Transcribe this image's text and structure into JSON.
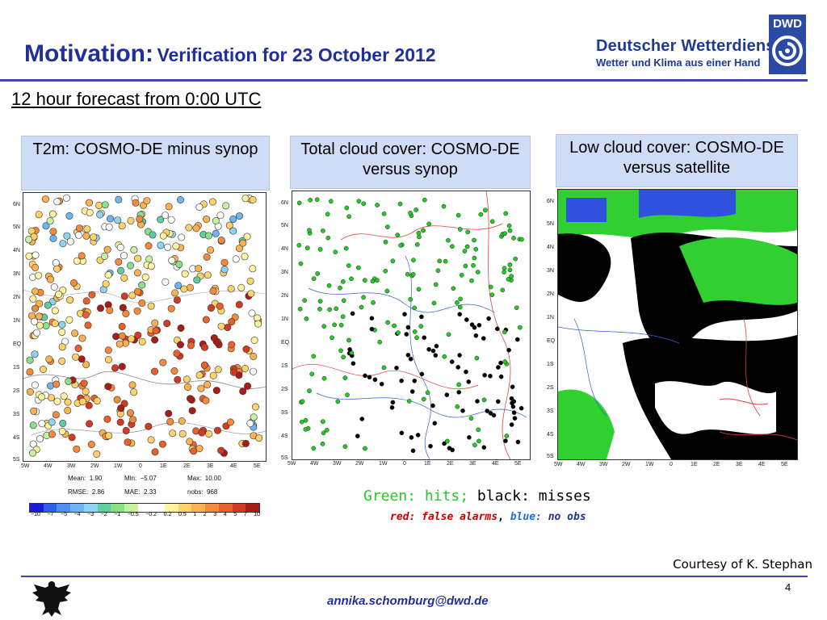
{
  "header": {
    "title_main": "Motivation:",
    "title_sub": "Verification for 23 October 2012",
    "logo_name": "Deutscher Wetterdienst",
    "logo_tagline": "Wetter und Klima aus einer Hand",
    "logo_abbr": "DWD"
  },
  "subtitle": "12 hour forecast from 0:00 UTC",
  "panels": [
    {
      "title": "T2m: COSMO-DE minus synop"
    },
    {
      "title": "Total cloud cover: COSMO-DE versus synop"
    },
    {
      "title": "Low cloud cover: COSMO-DE versus satellite"
    }
  ],
  "axes": {
    "y_ticks": [
      "6N",
      "5N",
      "4N",
      "3N",
      "2N",
      "1N",
      "EQ",
      "1S",
      "2S",
      "3S",
      "4S",
      "5S"
    ],
    "x_ticks_left": [
      "5W",
      "4W",
      "3W",
      "2W",
      "1W",
      "0",
      "1E",
      "2E",
      "3E",
      "4E",
      "5E"
    ],
    "x_ticks_mid": [
      "5W",
      "4W",
      "3W",
      "2W",
      "1W",
      "0",
      "1E",
      "2E",
      "3E",
      "4E",
      "5E"
    ],
    "x_ticks_right": [
      "5W",
      "4W",
      "3W",
      "2W",
      "1W",
      "0",
      "1E",
      "2E",
      "3E",
      "4E",
      "5E"
    ]
  },
  "stats": {
    "mean_label": "Mean:",
    "mean": "1.90",
    "min_label": "Min:",
    "min": "−5.07",
    "max_label": "Max:",
    "max": "10.00",
    "rmse_label": "RMSE:",
    "rmse": "2.86",
    "mae_label": "MAE:",
    "mae": "2.33",
    "nobs_label": "nobs:",
    "nobs": "968"
  },
  "colorbar": {
    "labels": [
      "−10",
      "−7",
      "−5",
      "−4",
      "−3",
      "−2",
      "−1",
      "−0.5",
      "−0.2",
      "0.2",
      "0.5",
      "1",
      "2",
      "3",
      "4",
      "5",
      "7",
      "10"
    ],
    "colors": [
      "#1a1adb",
      "#2e5cf0",
      "#4f8ff5",
      "#6fb4f5",
      "#8fd3f0",
      "#5fcfa0",
      "#8ae08a",
      "#c8f0a0",
      "#ffffff",
      "#ffffff",
      "#fff2a0",
      "#ffd36a",
      "#fbb24f",
      "#f58a3a",
      "#e8602c",
      "#d23a22",
      "#a81d17"
    ]
  },
  "legend": {
    "green_text": "Green: hits;",
    "black_text": "black: misses",
    "red_text": "red: false alarms",
    "comma": ",",
    "blue_label": "blue:",
    "blue_text": "no obs"
  },
  "courtesy": "Courtesy of K. Stephan",
  "page_number": "4",
  "email": "annika.schomburg@dwd.de",
  "colors": {
    "accent": "#1f2f9b",
    "header_box": "#cfdcf5",
    "hit_green": "#22cc22",
    "miss_black": "#000000",
    "false_red": "#cc0000",
    "noobs_blue": "#1f6fd0"
  }
}
